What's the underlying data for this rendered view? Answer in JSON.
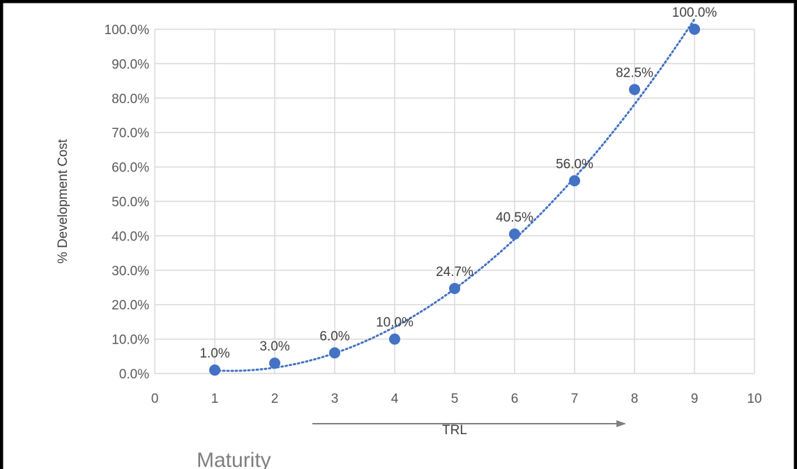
{
  "chart_data": {
    "type": "scatter",
    "xlabel": "TRL",
    "ylabel": "% Development Cost",
    "xlim": [
      0,
      10
    ],
    "ylim": [
      0,
      100
    ],
    "x_ticks": [
      0,
      1,
      2,
      3,
      4,
      5,
      6,
      7,
      8,
      9,
      10
    ],
    "y_ticks": [
      "0.0%",
      "10.0%",
      "20.0%",
      "30.0%",
      "40.0%",
      "50.0%",
      "60.0%",
      "70.0%",
      "80.0%",
      "90.0%",
      "100.0%"
    ],
    "grid": true,
    "legend": "none",
    "trendline": "dotted exponential",
    "series": [
      {
        "x": [
          1,
          2,
          3,
          4,
          5,
          6,
          7,
          8,
          9
        ],
        "y": [
          1.0,
          3.0,
          6.0,
          10.0,
          24.7,
          40.5,
          56.0,
          82.5,
          100.0
        ],
        "labels": [
          "1.0%",
          "3.0%",
          "6.0%",
          "10.0%",
          "24.7%",
          "40.5%",
          "56.0%",
          "82.5%",
          "100.0%"
        ]
      }
    ],
    "colors": {
      "points": "#4472c4",
      "grid": "#d9d9d9",
      "text": "#595959",
      "border": "#000000"
    }
  },
  "annotation": {
    "text": "Maturity",
    "arrow": "right"
  }
}
